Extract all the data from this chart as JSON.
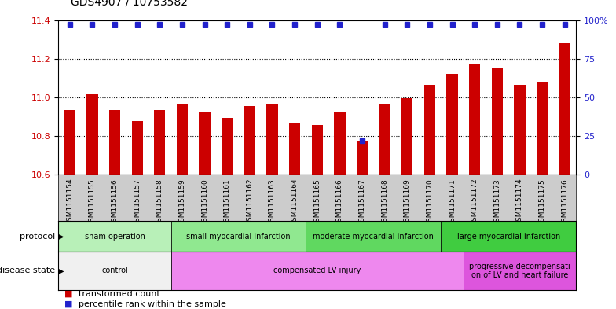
{
  "title": "GDS4907 / 10753582",
  "samples": [
    "GSM1151154",
    "GSM1151155",
    "GSM1151156",
    "GSM1151157",
    "GSM1151158",
    "GSM1151159",
    "GSM1151160",
    "GSM1151161",
    "GSM1151162",
    "GSM1151163",
    "GSM1151164",
    "GSM1151165",
    "GSM1151166",
    "GSM1151167",
    "GSM1151168",
    "GSM1151169",
    "GSM1151170",
    "GSM1151171",
    "GSM1151172",
    "GSM1151173",
    "GSM1151174",
    "GSM1151175",
    "GSM1151176"
  ],
  "bar_values": [
    10.935,
    11.02,
    10.935,
    10.875,
    10.935,
    10.965,
    10.925,
    10.895,
    10.955,
    10.965,
    10.865,
    10.855,
    10.925,
    10.775,
    10.965,
    10.995,
    11.065,
    11.12,
    11.17,
    11.155,
    11.065,
    11.08,
    11.28
  ],
  "percentile_values": [
    97,
    97,
    97,
    97,
    97,
    97,
    97,
    97,
    97,
    97,
    97,
    97,
    97,
    22,
    97,
    97,
    97,
    97,
    97,
    97,
    97,
    97,
    97
  ],
  "bar_color": "#cc0000",
  "percentile_color": "#2222cc",
  "ylim_left": [
    10.6,
    11.4
  ],
  "ylim_right": [
    0,
    100
  ],
  "yticks_left": [
    10.6,
    10.8,
    11.0,
    11.2,
    11.4
  ],
  "yticks_right": [
    0,
    25,
    50,
    75,
    100
  ],
  "ytick_labels_right": [
    "0",
    "25",
    "50",
    "75",
    "100%"
  ],
  "grid_values": [
    10.8,
    11.0,
    11.2
  ],
  "protocol_groups": [
    {
      "label": "sham operation",
      "start": 0,
      "end": 5,
      "color": "#b8f0b8"
    },
    {
      "label": "small myocardial infarction",
      "start": 5,
      "end": 11,
      "color": "#90e890"
    },
    {
      "label": "moderate myocardial infarction",
      "start": 11,
      "end": 17,
      "color": "#60d860"
    },
    {
      "label": "large myocardial infarction",
      "start": 17,
      "end": 23,
      "color": "#40cc40"
    }
  ],
  "disease_groups": [
    {
      "label": "control",
      "start": 0,
      "end": 5,
      "color": "#f0f0f0"
    },
    {
      "label": "compensated LV injury",
      "start": 5,
      "end": 18,
      "color": "#ee88ee"
    },
    {
      "label": "progressive decompensati\non of LV and heart failure",
      "start": 18,
      "end": 23,
      "color": "#dd55dd"
    }
  ],
  "bar_width": 0.5,
  "tick_label_fontsize": 6.5,
  "xticklabel_bg_color": "#cccccc"
}
